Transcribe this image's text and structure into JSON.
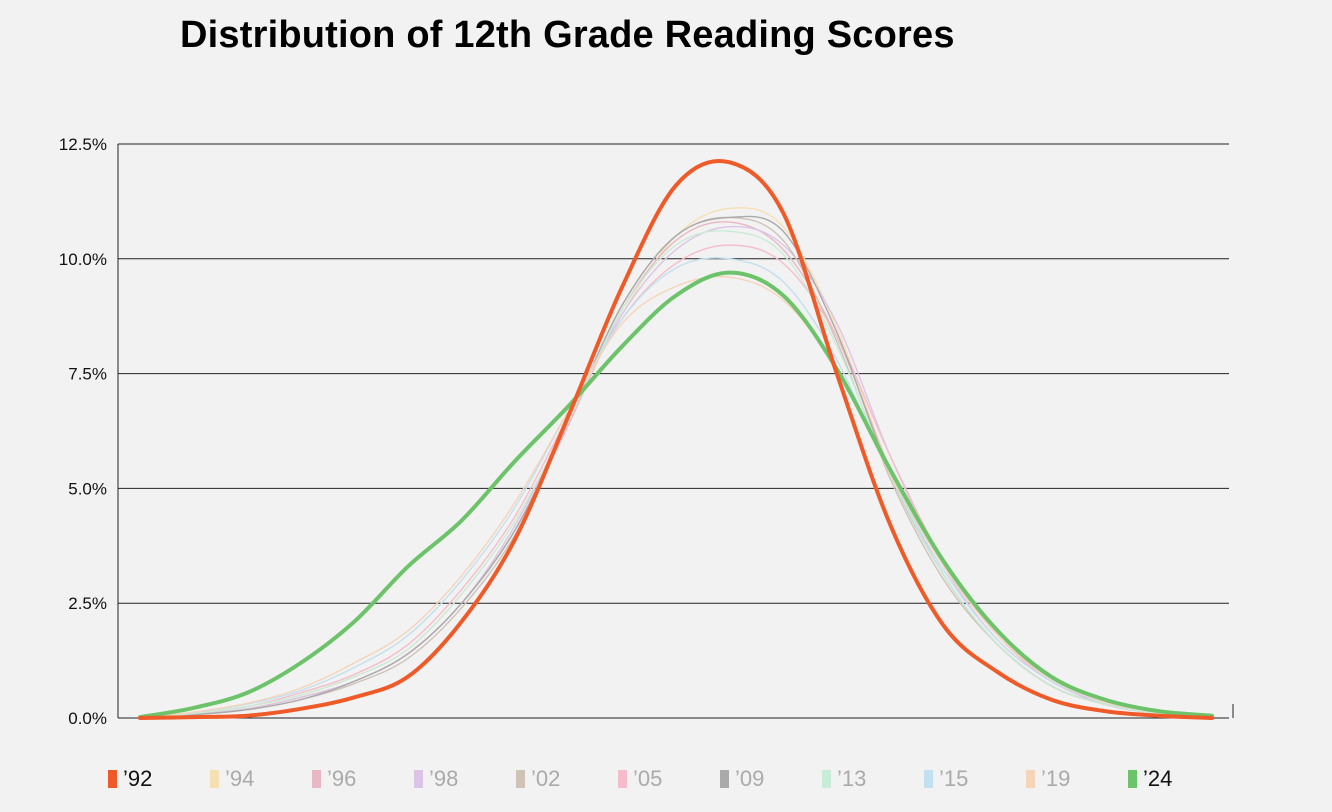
{
  "title": "Distribution of 12th Grade Reading Scores",
  "chart_data": {
    "type": "line",
    "title": "Distribution of 12th Grade Reading Scores",
    "ylim": [
      0,
      12.5
    ],
    "yticks": [
      "0.0%",
      "2.5%",
      "5.0%",
      "7.5%",
      "10.0%",
      "12.5%"
    ],
    "ytick_values": [
      0,
      2.5,
      5,
      7.5,
      10,
      12.5
    ],
    "grid": "horizontal",
    "legend_position": "bottom",
    "xlim": [
      0,
      100
    ],
    "x": [
      0,
      5,
      10,
      15,
      20,
      25,
      30,
      35,
      40,
      45,
      50,
      55,
      60,
      65,
      70,
      75,
      80,
      85,
      90,
      95,
      100
    ],
    "series": [
      {
        "name": "'92",
        "color": "#f05a28",
        "bold": true,
        "values": [
          0,
          0.02,
          0.05,
          0.2,
          0.45,
          0.9,
          2.1,
          3.9,
          6.6,
          9.4,
          11.6,
          12.1,
          11.0,
          7.5,
          4.2,
          2.0,
          1.0,
          0.4,
          0.15,
          0.05,
          0
        ]
      },
      {
        "name": "'94",
        "color": "#f7dfb4",
        "bold": false,
        "values": [
          0,
          0.1,
          0.25,
          0.5,
          0.9,
          1.5,
          2.7,
          4.3,
          6.5,
          8.8,
          10.5,
          11.1,
          10.7,
          8.5,
          5.4,
          3.1,
          1.6,
          0.7,
          0.3,
          0.1,
          0.05
        ]
      },
      {
        "name": "'96",
        "color": "#e8b8c4",
        "bold": false,
        "values": [
          0,
          0.08,
          0.2,
          0.45,
          0.8,
          1.4,
          2.5,
          4.1,
          6.4,
          8.9,
          10.4,
          10.8,
          10.2,
          8.3,
          5.4,
          3.1,
          1.6,
          0.7,
          0.3,
          0.1,
          0.05
        ]
      },
      {
        "name": "'98",
        "color": "#dcc4e6",
        "bold": false,
        "values": [
          0,
          0.08,
          0.2,
          0.45,
          0.8,
          1.4,
          2.5,
          4.2,
          6.5,
          8.8,
          10.2,
          10.7,
          10.3,
          8.6,
          5.7,
          3.3,
          1.7,
          0.8,
          0.3,
          0.1,
          0.05
        ]
      },
      {
        "name": "'02",
        "color": "#cfc2b6",
        "bold": false,
        "values": [
          0,
          0.07,
          0.18,
          0.4,
          0.75,
          1.3,
          2.4,
          4.0,
          6.5,
          9.0,
          10.5,
          10.9,
          10.4,
          8.2,
          5.2,
          3.0,
          1.6,
          0.7,
          0.3,
          0.1,
          0.05
        ]
      },
      {
        "name": "'05",
        "color": "#f5bccb",
        "bold": false,
        "values": [
          0,
          0.1,
          0.25,
          0.55,
          0.95,
          1.6,
          2.8,
          4.4,
          6.6,
          8.7,
          9.9,
          10.3,
          9.9,
          8.3,
          5.7,
          3.4,
          1.8,
          0.8,
          0.35,
          0.12,
          0.05
        ]
      },
      {
        "name": "'09",
        "color": "#aaaaaa",
        "bold": false,
        "values": [
          0,
          0.07,
          0.18,
          0.4,
          0.8,
          1.4,
          2.5,
          4.1,
          6.5,
          9.0,
          10.5,
          10.9,
          10.6,
          8.4,
          5.3,
          3.1,
          1.6,
          0.7,
          0.3,
          0.1,
          0.05
        ]
      },
      {
        "name": "'13",
        "color": "#c9ecd6",
        "bold": false,
        "values": [
          0,
          0.1,
          0.25,
          0.5,
          0.9,
          1.5,
          2.7,
          4.3,
          6.5,
          8.9,
          10.3,
          10.6,
          10.1,
          8.1,
          5.3,
          3.1,
          1.6,
          0.7,
          0.3,
          0.1,
          0.05
        ]
      },
      {
        "name": "'15",
        "color": "#c2e0ef",
        "bold": false,
        "values": [
          0,
          0.12,
          0.3,
          0.6,
          1.1,
          1.8,
          3.0,
          4.6,
          6.7,
          8.7,
          9.8,
          10.0,
          9.5,
          7.8,
          5.3,
          3.2,
          1.7,
          0.8,
          0.35,
          0.12,
          0.05
        ]
      },
      {
        "name": "'19",
        "color": "#f5d4b8",
        "bold": false,
        "values": [
          0,
          0.13,
          0.32,
          0.65,
          1.2,
          1.9,
          3.1,
          4.7,
          6.7,
          8.6,
          9.4,
          9.6,
          9.1,
          7.6,
          5.3,
          3.3,
          1.8,
          0.85,
          0.35,
          0.12,
          0.05
        ]
      },
      {
        "name": "'24",
        "color": "#6cc36a",
        "bold": true,
        "values": [
          0.02,
          0.22,
          0.55,
          1.2,
          2.1,
          3.3,
          4.3,
          5.6,
          6.8,
          8.1,
          9.2,
          9.7,
          9.2,
          7.6,
          5.4,
          3.4,
          1.9,
          0.9,
          0.4,
          0.15,
          0.05
        ]
      }
    ]
  }
}
